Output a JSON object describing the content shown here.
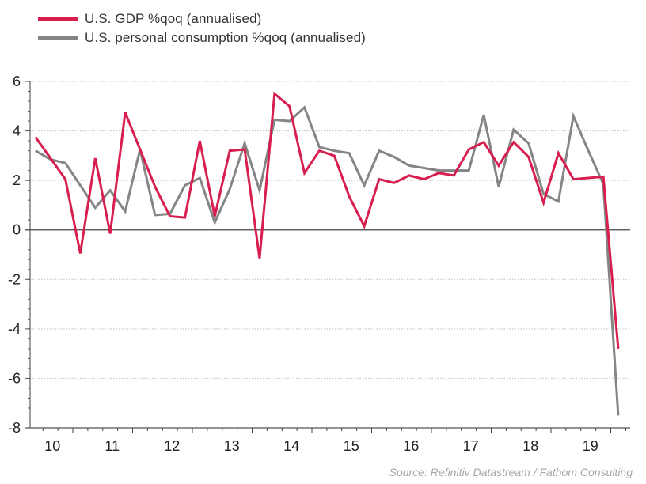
{
  "legend": {
    "items": [
      {
        "label": "U.S. GDP %qoq (annualised)",
        "color": "#d81e4f"
      },
      {
        "label": "U.S. personal consumption %qoq (annualised)",
        "color": "#858585"
      }
    ]
  },
  "source": "Source: Refinitiv Datastream / Fathom Consulting",
  "chart_data": {
    "type": "line",
    "title": "",
    "xlabel": "",
    "ylabel": "",
    "ylim": [
      -8,
      6
    ],
    "yticks": [
      6,
      4,
      2,
      0,
      -2,
      -4,
      -6,
      -8
    ],
    "grid": true,
    "legend_position": "top-left",
    "x_tick_labels": [
      "10",
      "11",
      "12",
      "13",
      "14",
      "15",
      "16",
      "17",
      "18",
      "19"
    ],
    "x_start_year": 2010,
    "x_start_quarter": 2,
    "x": [
      "2010Q2",
      "2010Q3",
      "2010Q4",
      "2011Q1",
      "2011Q2",
      "2011Q3",
      "2011Q4",
      "2012Q1",
      "2012Q2",
      "2012Q3",
      "2012Q4",
      "2013Q1",
      "2013Q2",
      "2013Q3",
      "2013Q4",
      "2014Q1",
      "2014Q2",
      "2014Q3",
      "2014Q4",
      "2015Q1",
      "2015Q2",
      "2015Q3",
      "2015Q4",
      "2016Q1",
      "2016Q2",
      "2016Q3",
      "2016Q4",
      "2017Q1",
      "2017Q2",
      "2017Q3",
      "2017Q4",
      "2018Q1",
      "2018Q2",
      "2018Q3",
      "2018Q4",
      "2019Q1",
      "2019Q2",
      "2019Q3",
      "2019Q4",
      "2020Q1"
    ],
    "series": [
      {
        "name": "U.S. GDP %qoq (annualised)",
        "color": "#d81e4f",
        "values": [
          3.75,
          2.9,
          2.05,
          -0.95,
          2.9,
          -0.15,
          4.75,
          3.25,
          1.75,
          0.55,
          0.5,
          3.6,
          0.55,
          3.2,
          3.25,
          -1.15,
          5.5,
          5.0,
          2.3,
          3.2,
          3.0,
          1.35,
          0.15,
          2.05,
          1.9,
          2.2,
          2.05,
          2.3,
          2.2,
          3.25,
          3.55,
          2.6,
          3.55,
          2.95,
          1.1,
          3.1,
          2.05,
          2.1,
          2.15,
          -4.8
        ]
      },
      {
        "name": "U.S. personal consumption %qoq (annualised)",
        "color": "#858585",
        "values": [
          3.2,
          2.85,
          2.7,
          1.8,
          0.9,
          1.6,
          0.75,
          3.25,
          0.6,
          0.65,
          1.8,
          2.1,
          0.3,
          1.65,
          3.5,
          1.6,
          4.45,
          4.4,
          4.95,
          3.35,
          3.2,
          3.1,
          1.8,
          3.2,
          2.95,
          2.6,
          2.5,
          2.4,
          2.4,
          2.4,
          4.65,
          1.75,
          4.05,
          3.5,
          1.45,
          1.15,
          4.6,
          3.2,
          1.85,
          -7.5
        ]
      }
    ]
  }
}
